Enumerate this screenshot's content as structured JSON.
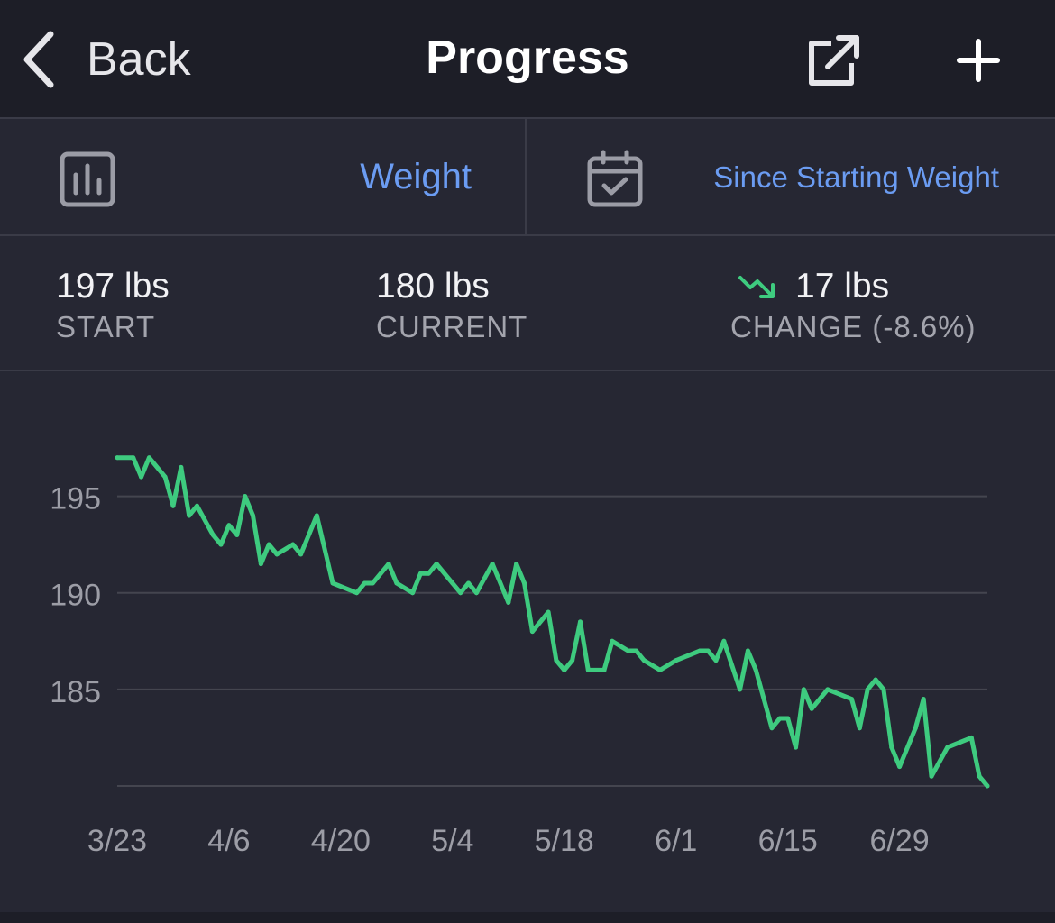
{
  "nav": {
    "back_label": "Back",
    "title": "Progress",
    "icons": {
      "back": "chevron-left-icon",
      "share": "share-external-icon",
      "add": "plus-icon"
    }
  },
  "selector": {
    "metric_label": "Weight",
    "metric_icon": "bar-chart-icon",
    "range_label": "Since Starting Weight",
    "range_icon": "calendar-check-icon"
  },
  "stats": {
    "start": {
      "value": "197 lbs",
      "label": "START"
    },
    "current": {
      "value": "180 lbs",
      "label": "CURRENT"
    },
    "change": {
      "value": "17 lbs",
      "label": "CHANGE (-8.6%)",
      "trend": "down"
    }
  },
  "colors": {
    "accent": "#6b9cf2",
    "line": "#3ecb7f",
    "background": "#262733",
    "header": "#1d1e27",
    "muted_text": "#a3a4ad"
  },
  "chart_data": {
    "type": "line",
    "title": "",
    "xlabel": "",
    "ylabel": "",
    "x_ticks": [
      "3/23",
      "4/6",
      "4/20",
      "5/4",
      "5/18",
      "6/1",
      "6/15",
      "6/29"
    ],
    "y_ticks": [
      195,
      190,
      185
    ],
    "ylim": [
      180,
      197.5
    ],
    "x_range_days": [
      0,
      109
    ],
    "grid": true,
    "series": [
      {
        "name": "",
        "points": [
          [
            0,
            197.0
          ],
          [
            2,
            197.0
          ],
          [
            3,
            196.0
          ],
          [
            4,
            197.0
          ],
          [
            6,
            196.0
          ],
          [
            7,
            194.5
          ],
          [
            8,
            196.5
          ],
          [
            9,
            194.0
          ],
          [
            10,
            194.5
          ],
          [
            12,
            193.0
          ],
          [
            13,
            192.5
          ],
          [
            14,
            193.5
          ],
          [
            15,
            193.0
          ],
          [
            16,
            195.0
          ],
          [
            17,
            194.0
          ],
          [
            18,
            191.5
          ],
          [
            19,
            192.5
          ],
          [
            20,
            192.0
          ],
          [
            22,
            192.5
          ],
          [
            23,
            192.0
          ],
          [
            25,
            194.0
          ],
          [
            27,
            190.5
          ],
          [
            30,
            190.0
          ],
          [
            31,
            190.5
          ],
          [
            32,
            190.5
          ],
          [
            34,
            191.5
          ],
          [
            35,
            190.5
          ],
          [
            37,
            190.0
          ],
          [
            38,
            191.0
          ],
          [
            39,
            191.0
          ],
          [
            40,
            191.5
          ],
          [
            42,
            190.5
          ],
          [
            43,
            190.0
          ],
          [
            44,
            190.5
          ],
          [
            45,
            190.0
          ],
          [
            47,
            191.5
          ],
          [
            49,
            189.5
          ],
          [
            50,
            191.5
          ],
          [
            51,
            190.5
          ],
          [
            52,
            188.0
          ],
          [
            54,
            189.0
          ],
          [
            55,
            186.5
          ],
          [
            56,
            186.0
          ],
          [
            57,
            186.5
          ],
          [
            58,
            188.5
          ],
          [
            59,
            186.0
          ],
          [
            61,
            186.0
          ],
          [
            62,
            187.5
          ],
          [
            64,
            187.0
          ],
          [
            65,
            187.0
          ],
          [
            66,
            186.5
          ],
          [
            68,
            186.0
          ],
          [
            70,
            186.5
          ],
          [
            73,
            187.0
          ],
          [
            74,
            187.0
          ],
          [
            75,
            186.5
          ],
          [
            76,
            187.5
          ],
          [
            78,
            185.0
          ],
          [
            79,
            187.0
          ],
          [
            80,
            186.0
          ],
          [
            82,
            183.0
          ],
          [
            83,
            183.5
          ],
          [
            84,
            183.5
          ],
          [
            85,
            182.0
          ],
          [
            86,
            185.0
          ],
          [
            87,
            184.0
          ],
          [
            89,
            185.0
          ],
          [
            92,
            184.5
          ],
          [
            93,
            183.0
          ],
          [
            94,
            185.0
          ],
          [
            95,
            185.5
          ],
          [
            96,
            185.0
          ],
          [
            97,
            182.0
          ],
          [
            98,
            181.0
          ],
          [
            100,
            183.0
          ],
          [
            101,
            184.5
          ],
          [
            102,
            180.5
          ],
          [
            104,
            182.0
          ],
          [
            107,
            182.5
          ],
          [
            108,
            180.5
          ],
          [
            109,
            180.0
          ]
        ]
      }
    ]
  }
}
